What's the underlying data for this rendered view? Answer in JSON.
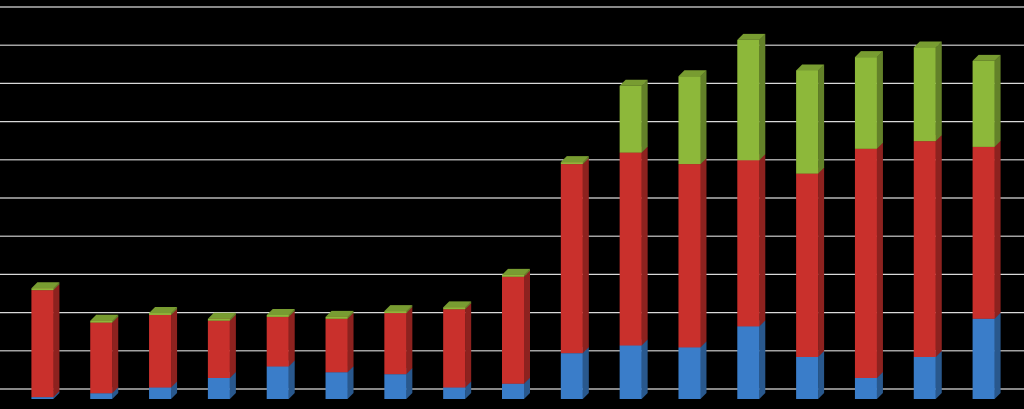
{
  "chart_data": {
    "type": "bar",
    "stacked": true,
    "categories": [
      null,
      null,
      null,
      null,
      null,
      null,
      null,
      null,
      null,
      null,
      null,
      null,
      null,
      null,
      null,
      null,
      null
    ],
    "series": [
      {
        "color": "#3a7dc9",
        "values": [
          0.05,
          0.15,
          0.3,
          0.55,
          0.85,
          0.7,
          0.65,
          0.3,
          0.4,
          1.2,
          1.4,
          1.35,
          1.9,
          1.1,
          0.55,
          1.1,
          2.1
        ]
      },
      {
        "color": "#c9302c",
        "values": [
          2.8,
          1.85,
          1.9,
          1.5,
          1.3,
          1.4,
          1.6,
          2.05,
          2.8,
          4.95,
          5.05,
          4.8,
          4.35,
          4.8,
          6.0,
          5.65,
          4.5
        ]
      },
      {
        "color": "#8db83a",
        "values": [
          0.05,
          0.05,
          0.05,
          0.05,
          0.05,
          0.05,
          0.05,
          0.05,
          0.05,
          0.05,
          1.75,
          2.3,
          3.15,
          2.7,
          2.4,
          2.45,
          2.25
        ]
      }
    ],
    "ylim": [
      0,
      10
    ],
    "yticks": [
      0,
      1,
      2,
      3,
      4,
      5,
      6,
      7,
      8,
      9,
      10
    ],
    "grid": true
  }
}
